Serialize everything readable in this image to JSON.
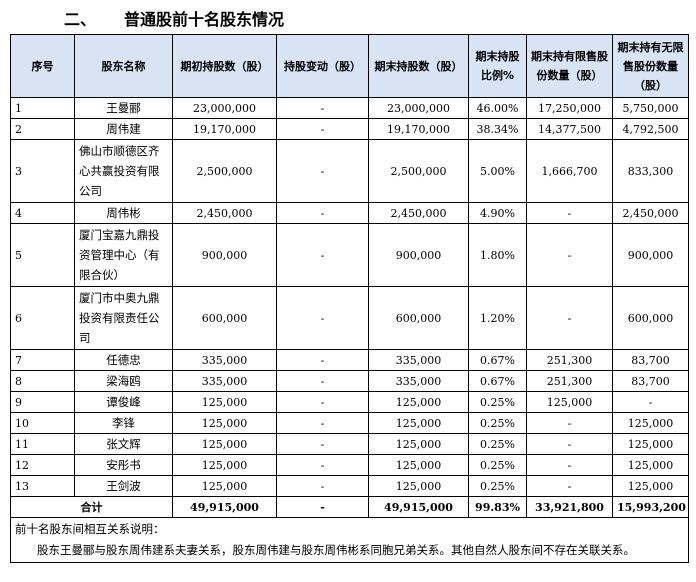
{
  "heading": {
    "number": "二、",
    "title": "普通股前十名股东情况"
  },
  "columns": [
    "序号",
    "股东名称",
    "期初持股数（股）",
    "持股变动（股）",
    "期末持股数（股）",
    "期末持股比例%",
    "期末持有限售股份数量（股）",
    "期末持有无限售股份数量（股）"
  ],
  "rows": [
    {
      "no": "1",
      "name": "王曼郦",
      "start": "23,000,000",
      "change": "-",
      "end": "23,000,000",
      "ratio": "46.00%",
      "restricted": "17,250,000",
      "unrestricted": "5,750,000"
    },
    {
      "no": "2",
      "name": "周伟建",
      "start": "19,170,000",
      "change": "-",
      "end": "19,170,000",
      "ratio": "38.34%",
      "restricted": "14,377,500",
      "unrestricted": "4,792,500"
    },
    {
      "no": "3",
      "name": "佛山市顺德区齐心共赢投资有限公司",
      "start": "2,500,000",
      "change": "-",
      "end": "2,500,000",
      "ratio": "5.00%",
      "restricted": "1,666,700",
      "unrestricted": "833,300"
    },
    {
      "no": "4",
      "name": "周伟彬",
      "start": "2,450,000",
      "change": "-",
      "end": "2,450,000",
      "ratio": "4.90%",
      "restricted": "-",
      "unrestricted": "2,450,000"
    },
    {
      "no": "5",
      "name": "厦门宝嘉九鼎投资管理中心（有限合伙）",
      "start": "900,000",
      "change": "-",
      "end": "900,000",
      "ratio": "1.80%",
      "restricted": "-",
      "unrestricted": "900,000"
    },
    {
      "no": "6",
      "name": "厦门市中奥九鼎投资有限责任公司",
      "start": "600,000",
      "change": "-",
      "end": "600,000",
      "ratio": "1.20%",
      "restricted": "-",
      "unrestricted": "600,000"
    },
    {
      "no": "7",
      "name": "任德忠",
      "start": "335,000",
      "change": "-",
      "end": "335,000",
      "ratio": "0.67%",
      "restricted": "251,300",
      "unrestricted": "83,700"
    },
    {
      "no": "8",
      "name": "梁海鸥",
      "start": "335,000",
      "change": "-",
      "end": "335,000",
      "ratio": "0.67%",
      "restricted": "251,300",
      "unrestricted": "83,700"
    },
    {
      "no": "9",
      "name": "谭俊峰",
      "start": "125,000",
      "change": "-",
      "end": "125,000",
      "ratio": "0.25%",
      "restricted": "125,000",
      "unrestricted": "-"
    },
    {
      "no": "10",
      "name": "李锋",
      "start": "125,000",
      "change": "-",
      "end": "125,000",
      "ratio": "0.25%",
      "restricted": "-",
      "unrestricted": "125,000"
    },
    {
      "no": "11",
      "name": "张文辉",
      "start": "125,000",
      "change": "-",
      "end": "125,000",
      "ratio": "0.25%",
      "restricted": "-",
      "unrestricted": "125,000"
    },
    {
      "no": "12",
      "name": "安彤书",
      "start": "125,000",
      "change": "-",
      "end": "125,000",
      "ratio": "0.25%",
      "restricted": "-",
      "unrestricted": "125,000"
    },
    {
      "no": "13",
      "name": "王剑波",
      "start": "125,000",
      "change": "-",
      "end": "125,000",
      "ratio": "0.25%",
      "restricted": "-",
      "unrestricted": "125,000"
    }
  ],
  "total": {
    "label": "合计",
    "start": "49,915,000",
    "change": "-",
    "end": "49,915,000",
    "ratio": "99.83%",
    "restricted": "33,921,800",
    "unrestricted": "15,993,200"
  },
  "note": {
    "title": "前十名股东间相互关系说明：",
    "text": "股东王曼郦与股东周伟建系夫妻关系，股东周伟建与股东周伟彬系同胞兄弟关系。其他自然人股东间不存在关联关系。"
  }
}
